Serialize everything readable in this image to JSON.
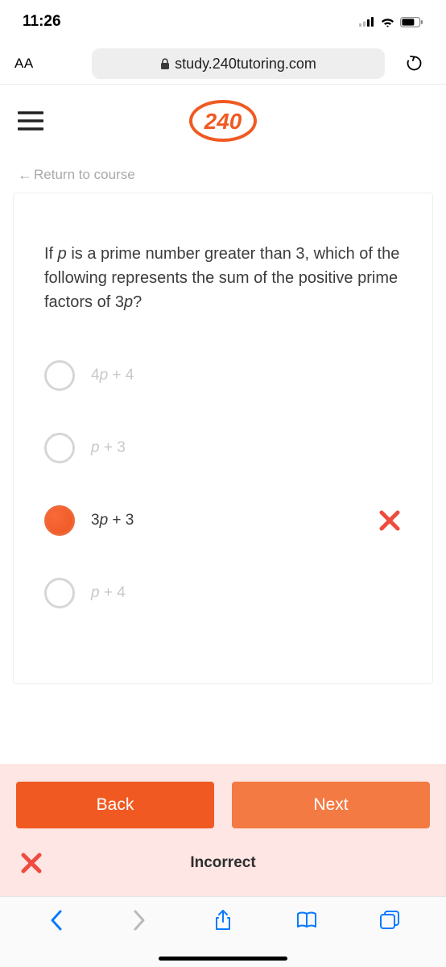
{
  "status": {
    "time": "11:26"
  },
  "address_bar": {
    "aa": "AA",
    "url": "study.240tutoring.com"
  },
  "app": {
    "logo_text": "240",
    "return_label": "Return to course"
  },
  "question": {
    "prompt_html": "If <i>p</i> is a prime number greater than 3, which of the following represents the sum of the positive prime factors of 3<i>p</i>?",
    "options": [
      {
        "html": "4<i>p</i> + 4",
        "selected": false
      },
      {
        "html": "<i>p</i> + 3",
        "selected": false
      },
      {
        "html": "3<i>p</i> + 3",
        "selected": true,
        "marked_wrong": true
      },
      {
        "html": "<i>p</i> + 4",
        "selected": false
      }
    ]
  },
  "feedback": {
    "back_label": "Back",
    "next_label": "Next",
    "status_label": "Incorrect"
  },
  "colors": {
    "brand": "#f05a22",
    "brand_light": "#f47a43",
    "wrong_x": "#ef4b3e",
    "feedback_bg": "#fde6e3",
    "safari_blue": "#0a7aff",
    "muted": "#c9c9cc"
  }
}
